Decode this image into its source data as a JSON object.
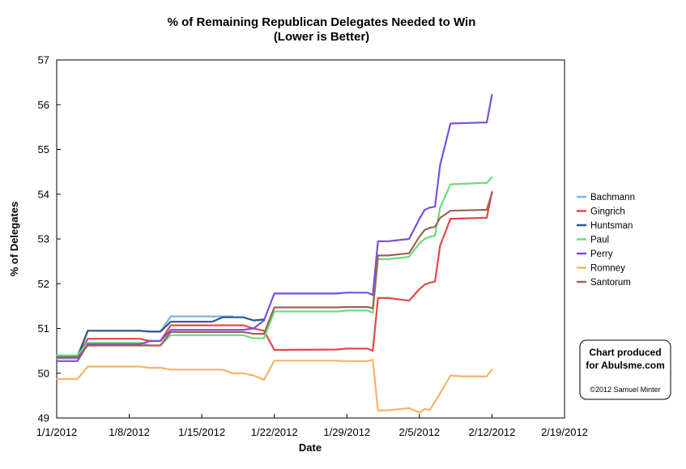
{
  "chart_data": {
    "type": "line",
    "title": "% of Remaining Republican Delegates Needed to Win",
    "subtitle": "(Lower is Better)",
    "xlabel": "Date",
    "ylabel": "% of Delegates",
    "xlim": [
      "2012-01-01",
      "2012-02-19"
    ],
    "ylim": [
      49,
      57
    ],
    "x_ticks": [
      "1/1/2012",
      "1/8/2012",
      "1/15/2012",
      "1/22/2012",
      "1/29/2012",
      "2/5/2012",
      "2/12/2012",
      "2/19/2012"
    ],
    "y_ticks": [
      49,
      50,
      51,
      52,
      53,
      54,
      55,
      56,
      57
    ],
    "grid": false,
    "legend_position": "right",
    "series": [
      {
        "name": "Bachmann",
        "color": "#7fb2e5",
        "points": [
          [
            "2012-01-01",
            50.33
          ],
          [
            "2012-01-03",
            50.33
          ],
          [
            "2012-01-04",
            50.95
          ],
          [
            "2012-01-09",
            50.95
          ],
          [
            "2012-01-10",
            50.93
          ],
          [
            "2012-01-11",
            50.93
          ],
          [
            "2012-01-12",
            51.27
          ],
          [
            "2012-01-18",
            51.27
          ]
        ]
      },
      {
        "name": "Gingrich",
        "color": "#e5484a",
        "points": [
          [
            "2012-01-01",
            50.35
          ],
          [
            "2012-01-03",
            50.35
          ],
          [
            "2012-01-04",
            50.77
          ],
          [
            "2012-01-09",
            50.77
          ],
          [
            "2012-01-10",
            50.72
          ],
          [
            "2012-01-11",
            50.72
          ],
          [
            "2012-01-12",
            51.07
          ],
          [
            "2012-01-19",
            51.07
          ],
          [
            "2012-01-20",
            51.0
          ],
          [
            "2012-01-21",
            50.95
          ],
          [
            "2012-01-22",
            50.52
          ],
          [
            "2012-01-28",
            50.53
          ],
          [
            "2012-01-29",
            50.55
          ],
          [
            "2012-01-31",
            50.55
          ],
          [
            "2012-01-31.5",
            50.5
          ],
          [
            "2012-02-01",
            51.68
          ],
          [
            "2012-02-02",
            51.68
          ],
          [
            "2012-02-04",
            51.62
          ],
          [
            "2012-02-05",
            51.88
          ],
          [
            "2012-02-05.5",
            51.98
          ],
          [
            "2012-02-06",
            52.02
          ],
          [
            "2012-02-06.5",
            52.05
          ],
          [
            "2012-02-07",
            52.85
          ],
          [
            "2012-02-08",
            53.45
          ],
          [
            "2012-02-11",
            53.47
          ],
          [
            "2012-02-11.5",
            53.47
          ],
          [
            "2012-02-12",
            54.05
          ]
        ]
      },
      {
        "name": "Huntsman",
        "color": "#2a5a8c",
        "points": [
          [
            "2012-01-01",
            50.37
          ],
          [
            "2012-01-03",
            50.37
          ],
          [
            "2012-01-04",
            50.95
          ],
          [
            "2012-01-09",
            50.95
          ],
          [
            "2012-01-10",
            50.93
          ],
          [
            "2012-01-11",
            50.93
          ],
          [
            "2012-01-12",
            51.15
          ],
          [
            "2012-01-16",
            51.15
          ],
          [
            "2012-01-17",
            51.25
          ],
          [
            "2012-01-19",
            51.25
          ],
          [
            "2012-01-20",
            51.18
          ],
          [
            "2012-01-21",
            51.2
          ]
        ]
      },
      {
        "name": "Paul",
        "color": "#66e07a",
        "points": [
          [
            "2012-01-01",
            50.4
          ],
          [
            "2012-01-03",
            50.4
          ],
          [
            "2012-01-04",
            50.68
          ],
          [
            "2012-01-09",
            50.68
          ],
          [
            "2012-01-10",
            50.62
          ],
          [
            "2012-01-11",
            50.62
          ],
          [
            "2012-01-12",
            50.85
          ],
          [
            "2012-01-19",
            50.85
          ],
          [
            "2012-01-20",
            50.78
          ],
          [
            "2012-01-21",
            50.78
          ],
          [
            "2012-01-22",
            51.38
          ],
          [
            "2012-01-28",
            51.38
          ],
          [
            "2012-01-29",
            51.4
          ],
          [
            "2012-01-31",
            51.4
          ],
          [
            "2012-01-31.5",
            51.35
          ],
          [
            "2012-02-01",
            52.55
          ],
          [
            "2012-02-02",
            52.55
          ],
          [
            "2012-02-04",
            52.6
          ],
          [
            "2012-02-05",
            52.9
          ],
          [
            "2012-02-05.5",
            53.0
          ],
          [
            "2012-02-06",
            53.05
          ],
          [
            "2012-02-06.5",
            53.07
          ],
          [
            "2012-02-07",
            53.7
          ],
          [
            "2012-02-08",
            54.22
          ],
          [
            "2012-02-11",
            54.25
          ],
          [
            "2012-02-11.5",
            54.25
          ],
          [
            "2012-02-12",
            54.38
          ]
        ]
      },
      {
        "name": "Perry",
        "color": "#7a4fe0",
        "points": [
          [
            "2012-01-01",
            50.27
          ],
          [
            "2012-01-03",
            50.27
          ],
          [
            "2012-01-04",
            50.65
          ],
          [
            "2012-01-09",
            50.65
          ],
          [
            "2012-01-10",
            50.72
          ],
          [
            "2012-01-11",
            50.72
          ],
          [
            "2012-01-12",
            50.97
          ],
          [
            "2012-01-19",
            50.97
          ],
          [
            "2012-01-20",
            51.0
          ],
          [
            "2012-01-21",
            51.18
          ],
          [
            "2012-01-22",
            51.78
          ],
          [
            "2012-01-28",
            51.78
          ],
          [
            "2012-01-29",
            51.8
          ],
          [
            "2012-01-31",
            51.8
          ],
          [
            "2012-01-31.5",
            51.75
          ],
          [
            "2012-02-01",
            52.95
          ],
          [
            "2012-02-02",
            52.95
          ],
          [
            "2012-02-04",
            53.0
          ],
          [
            "2012-02-05",
            53.45
          ],
          [
            "2012-02-05.5",
            53.65
          ],
          [
            "2012-02-06",
            53.7
          ],
          [
            "2012-02-06.5",
            53.72
          ],
          [
            "2012-02-07",
            54.65
          ],
          [
            "2012-02-08",
            55.58
          ],
          [
            "2012-02-11",
            55.6
          ],
          [
            "2012-02-11.5",
            55.6
          ],
          [
            "2012-02-12",
            56.22
          ]
        ]
      },
      {
        "name": "Romney",
        "color": "#f7b267",
        "points": [
          [
            "2012-01-01",
            49.87
          ],
          [
            "2012-01-03",
            49.87
          ],
          [
            "2012-01-04",
            50.15
          ],
          [
            "2012-01-09",
            50.15
          ],
          [
            "2012-01-10",
            50.12
          ],
          [
            "2012-01-11",
            50.12
          ],
          [
            "2012-01-12",
            50.08
          ],
          [
            "2012-01-17",
            50.08
          ],
          [
            "2012-01-18",
            50.0
          ],
          [
            "2012-01-19",
            50.0
          ],
          [
            "2012-01-20",
            49.95
          ],
          [
            "2012-01-21",
            49.85
          ],
          [
            "2012-01-22",
            50.28
          ],
          [
            "2012-01-28",
            50.28
          ],
          [
            "2012-01-29",
            50.27
          ],
          [
            "2012-01-31",
            50.27
          ],
          [
            "2012-01-31.5",
            50.3
          ],
          [
            "2012-02-01",
            49.17
          ],
          [
            "2012-02-02",
            49.17
          ],
          [
            "2012-02-04",
            49.22
          ],
          [
            "2012-02-05",
            49.12
          ],
          [
            "2012-02-05.5",
            49.2
          ],
          [
            "2012-02-06",
            49.18
          ],
          [
            "2012-02-07",
            49.55
          ],
          [
            "2012-02-08",
            49.95
          ],
          [
            "2012-02-09",
            49.93
          ],
          [
            "2012-02-11",
            49.93
          ],
          [
            "2012-02-11.5",
            49.93
          ],
          [
            "2012-02-12",
            50.08
          ]
        ]
      },
      {
        "name": "Santorum",
        "color": "#a0605c",
        "points": [
          [
            "2012-01-01",
            50.35
          ],
          [
            "2012-01-03",
            50.35
          ],
          [
            "2012-01-04",
            50.62
          ],
          [
            "2012-01-09",
            50.62
          ],
          [
            "2012-01-10",
            50.62
          ],
          [
            "2012-01-11",
            50.62
          ],
          [
            "2012-01-12",
            50.92
          ],
          [
            "2012-01-19",
            50.92
          ],
          [
            "2012-01-20",
            50.88
          ],
          [
            "2012-01-21",
            50.88
          ],
          [
            "2012-01-22",
            51.47
          ],
          [
            "2012-01-28",
            51.47
          ],
          [
            "2012-01-29",
            51.48
          ],
          [
            "2012-01-31",
            51.48
          ],
          [
            "2012-01-31.5",
            51.45
          ],
          [
            "2012-02-01",
            52.63
          ],
          [
            "2012-02-02",
            52.63
          ],
          [
            "2012-02-04",
            52.68
          ],
          [
            "2012-02-05",
            53.05
          ],
          [
            "2012-02-05.5",
            53.2
          ],
          [
            "2012-02-06",
            53.25
          ],
          [
            "2012-02-06.5",
            53.27
          ],
          [
            "2012-02-07",
            53.47
          ],
          [
            "2012-02-08",
            53.63
          ],
          [
            "2012-02-11",
            53.65
          ],
          [
            "2012-02-11.5",
            53.65
          ],
          [
            "2012-02-12",
            54.03
          ]
        ]
      }
    ]
  },
  "credit": {
    "line1": "Chart produced",
    "line2": "for Abulsme.com",
    "copyright": "©2012 Samuel Minter"
  }
}
